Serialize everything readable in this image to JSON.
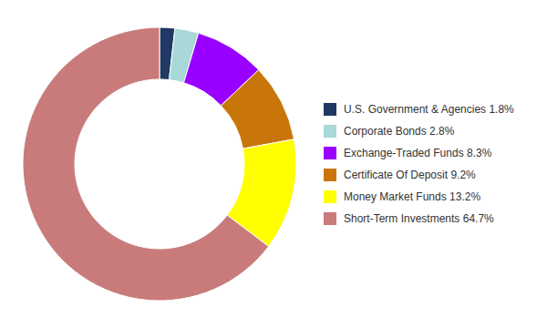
{
  "chart_data": {
    "type": "donut",
    "categories": [
      "U.S. Government & Agencies 1.8%",
      "Corporate Bonds 2.8%",
      "Exchange-Traded Funds 8.3%",
      "Certificate Of Deposit 9.2%",
      "Money Market Funds 13.2%",
      "Short-Term Investments 64.7%"
    ],
    "values": [
      1.8,
      2.8,
      8.3,
      9.2,
      13.2,
      64.7
    ],
    "colors": [
      "#1f3864",
      "#a8d8d8",
      "#9900ff",
      "#c8760a",
      "#ffff00",
      "#c97b7b"
    ],
    "legend": "right"
  }
}
